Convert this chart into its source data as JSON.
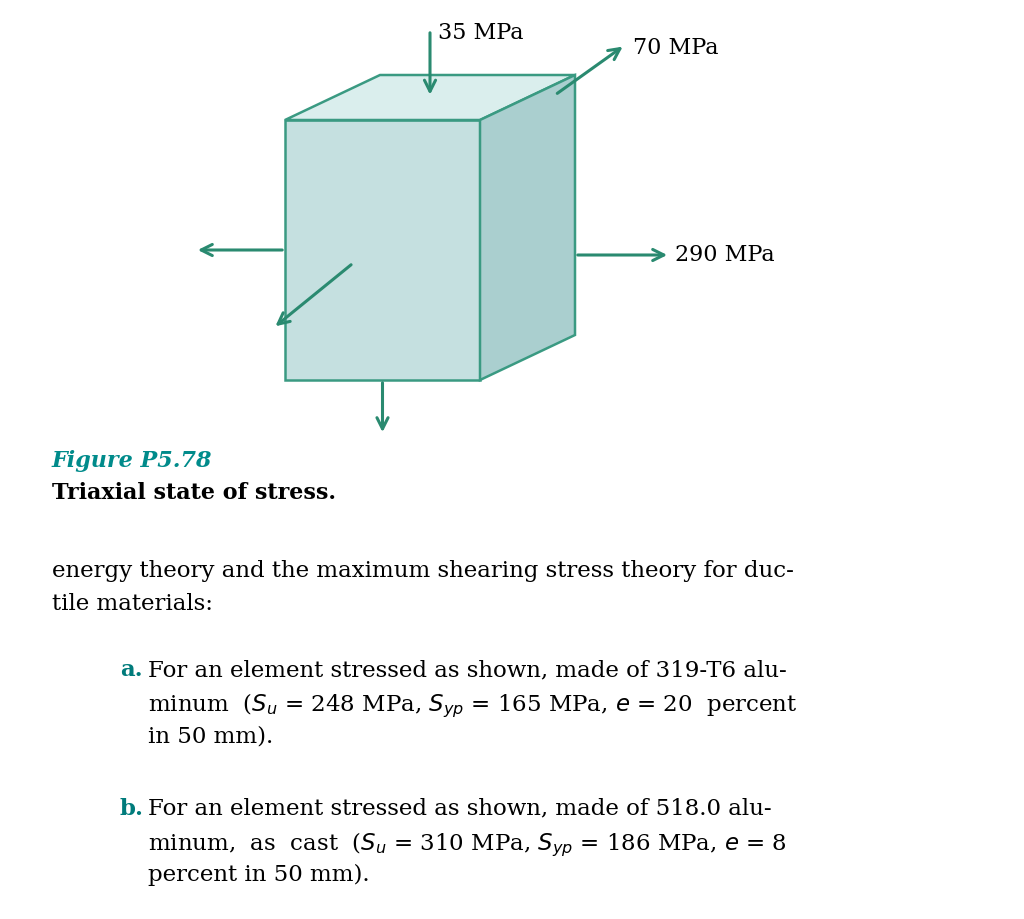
{
  "bg_color": "#ffffff",
  "box_front_color": "#c5e0e0",
  "box_top_color": "#daeeed",
  "box_right_color": "#aacfcf",
  "box_edge_color": "#3a9a82",
  "teal_color": "#007b7b",
  "arrow_color": "#2a8a70",
  "figure_label": "Figure P5.78",
  "figure_label_color": "#008B8B",
  "subtitle": "Triaxial state of stress.",
  "stress_35": "35 MPa",
  "stress_70": "70 MPa",
  "stress_290": "290 MPa",
  "line1": "energy theory and the maximum shearing stress theory for duc-",
  "line2": "tile materials:",
  "part_a_label": "a.",
  "part_a_line1": "For an element stressed as shown, made of 319-T6 alu-",
  "part_a_line3": "in 50 mm).",
  "part_b_label": "b.",
  "part_b_line1": "For an element stressed as shown, made of 518.0 alu-",
  "part_b_line3": "percent in 50 mm)."
}
